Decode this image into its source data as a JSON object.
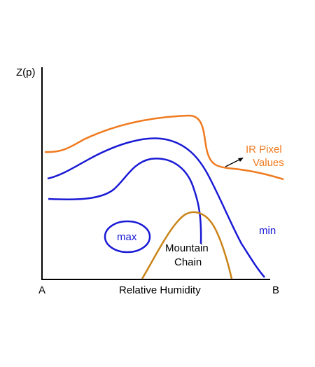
{
  "axes": {
    "y_label": "Z(p)",
    "x_label": "Relative Humidity",
    "x_start": "A",
    "x_end": "B"
  },
  "labels": {
    "ir_line1": "IR Pixel",
    "ir_line2": "Values",
    "max": "max",
    "min": "min",
    "mountain_line1": "Mountain",
    "mountain_line2": "Chain"
  },
  "colors": {
    "axis": "#000000",
    "ir_curve": "#f07a1e",
    "humidity_contours": "#1a1ad6",
    "mountain": "#c98418",
    "text": "#000000"
  }
}
